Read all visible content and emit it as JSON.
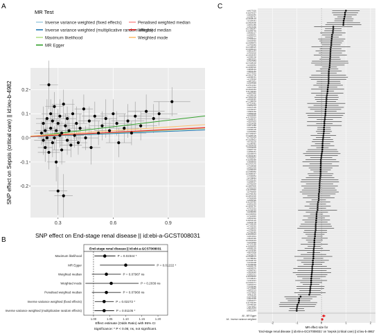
{
  "panels": {
    "a": {
      "letter": "A"
    },
    "b": {
      "letter": "B"
    },
    "c": {
      "letter": "C"
    }
  },
  "chart_data": [
    {
      "panel": "A",
      "type": "scatter",
      "xlabel": "SNP effect on End-stage renal disease || id:ebi-a-GCST008031",
      "ylabel": "SNP effect on Sepsis (critical care) || id:ieu-b-4982",
      "xlim": [
        0.15,
        1.1
      ],
      "ylim": [
        -0.33,
        0.29
      ],
      "xticks": [
        0.3,
        0.6,
        0.9
      ],
      "yticks": [
        -0.2,
        -0.1,
        0.0,
        0.1,
        0.2
      ],
      "legend": {
        "title": "MR Test",
        "position": "top",
        "entries": [
          {
            "label": "Inverse variance weighted (fixed effects)",
            "color": "#a6cee3"
          },
          {
            "label": "Penalised weighted median",
            "color": "#fb9a99"
          },
          {
            "label": "Inverse variance weighted (multiplicative random effects)",
            "color": "#1f78b4"
          },
          {
            "label": "Weighted median",
            "color": "#e31a1c"
          },
          {
            "label": "Maximum likelihood",
            "color": "#b2df8a"
          },
          {
            "label": "Weighted mode",
            "color": "#fdbf6f"
          },
          {
            "label": "MR Egger",
            "color": "#33a02c"
          }
        ]
      },
      "lines": [
        {
          "label": "Inverse variance weighted (fixed effects)",
          "slope": 0.03,
          "intercept": 0.0,
          "color": "#a6cee3"
        },
        {
          "label": "Inverse variance weighted (multiplicative random effects)",
          "slope": 0.03,
          "intercept": 0.0,
          "color": "#1f78b4"
        },
        {
          "label": "Maximum likelihood",
          "slope": 0.035,
          "intercept": 0.0,
          "color": "#b2df8a"
        },
        {
          "label": "MR Egger",
          "slope": 0.09,
          "intercept": -0.008,
          "color": "#33a02c"
        },
        {
          "label": "Penalised weighted median",
          "slope": 0.04,
          "intercept": 0.0,
          "color": "#fb9a99"
        },
        {
          "label": "Weighted median",
          "slope": 0.038,
          "intercept": 0.0,
          "color": "#e31a1c"
        },
        {
          "label": "Weighted mode",
          "slope": 0.05,
          "intercept": 0.0,
          "color": "#fdbf6f"
        }
      ],
      "points": [
        {
          "x": 0.21,
          "y": 0.02,
          "ex": 0.04,
          "ey": 0.05
        },
        {
          "x": 0.22,
          "y": -0.01,
          "ex": 0.05,
          "ey": 0.06
        },
        {
          "x": 0.22,
          "y": 0.06,
          "ex": 0.04,
          "ey": 0.07
        },
        {
          "x": 0.23,
          "y": 0.03,
          "ex": 0.05,
          "ey": 0.05
        },
        {
          "x": 0.23,
          "y": -0.04,
          "ex": 0.04,
          "ey": 0.06
        },
        {
          "x": 0.24,
          "y": 0.08,
          "ex": 0.06,
          "ey": 0.08
        },
        {
          "x": 0.24,
          "y": 0.0,
          "ex": 0.05,
          "ey": 0.05
        },
        {
          "x": 0.25,
          "y": 0.22,
          "ex": 0.05,
          "ey": 0.1
        },
        {
          "x": 0.25,
          "y": -0.06,
          "ex": 0.06,
          "ey": 0.07
        },
        {
          "x": 0.26,
          "y": 0.1,
          "ex": 0.05,
          "ey": 0.06
        },
        {
          "x": 0.26,
          "y": 0.04,
          "ex": 0.04,
          "ey": 0.05
        },
        {
          "x": 0.27,
          "y": -0.02,
          "ex": 0.06,
          "ey": 0.06
        },
        {
          "x": 0.27,
          "y": 0.07,
          "ex": 0.04,
          "ey": 0.07
        },
        {
          "x": 0.28,
          "y": 0.0,
          "ex": 0.05,
          "ey": 0.05
        },
        {
          "x": 0.28,
          "y": 0.13,
          "ex": 0.05,
          "ey": 0.06
        },
        {
          "x": 0.29,
          "y": -0.1,
          "ex": 0.05,
          "ey": 0.08
        },
        {
          "x": 0.29,
          "y": 0.03,
          "ex": 0.06,
          "ey": 0.05
        },
        {
          "x": 0.3,
          "y": 0.06,
          "ex": 0.04,
          "ey": 0.06
        },
        {
          "x": 0.3,
          "y": -0.22,
          "ex": 0.05,
          "ey": 0.1
        },
        {
          "x": 0.31,
          "y": 0.01,
          "ex": 0.06,
          "ey": 0.05
        },
        {
          "x": 0.31,
          "y": 0.09,
          "ex": 0.05,
          "ey": 0.07
        },
        {
          "x": 0.32,
          "y": -0.05,
          "ex": 0.05,
          "ey": 0.06
        },
        {
          "x": 0.32,
          "y": 0.02,
          "ex": 0.04,
          "ey": 0.05
        },
        {
          "x": 0.33,
          "y": 0.14,
          "ex": 0.06,
          "ey": 0.06
        },
        {
          "x": 0.33,
          "y": -0.24,
          "ex": 0.05,
          "ey": 0.09
        },
        {
          "x": 0.34,
          "y": 0.05,
          "ex": 0.05,
          "ey": 0.05
        },
        {
          "x": 0.35,
          "y": -0.01,
          "ex": 0.06,
          "ey": 0.06
        },
        {
          "x": 0.35,
          "y": 0.08,
          "ex": 0.05,
          "ey": 0.05
        },
        {
          "x": 0.36,
          "y": 0.03,
          "ex": 0.04,
          "ey": 0.06
        },
        {
          "x": 0.37,
          "y": -0.03,
          "ex": 0.06,
          "ey": 0.05
        },
        {
          "x": 0.38,
          "y": 0.1,
          "ex": 0.05,
          "ey": 0.06
        },
        {
          "x": 0.39,
          "y": 0.01,
          "ex": 0.05,
          "ey": 0.05
        },
        {
          "x": 0.4,
          "y": 0.06,
          "ex": 0.06,
          "ey": 0.07
        },
        {
          "x": 0.41,
          "y": -0.02,
          "ex": 0.05,
          "ey": 0.05
        },
        {
          "x": 0.42,
          "y": 0.04,
          "ex": 0.06,
          "ey": 0.06
        },
        {
          "x": 0.44,
          "y": 0.12,
          "ex": 0.05,
          "ey": 0.06
        },
        {
          "x": 0.45,
          "y": 0.0,
          "ex": 0.07,
          "ey": 0.05
        },
        {
          "x": 0.47,
          "y": 0.07,
          "ex": 0.06,
          "ey": 0.06
        },
        {
          "x": 0.48,
          "y": -0.04,
          "ex": 0.05,
          "ey": 0.07
        },
        {
          "x": 0.5,
          "y": 0.09,
          "ex": 0.07,
          "ey": 0.06
        },
        {
          "x": 0.52,
          "y": 0.02,
          "ex": 0.06,
          "ey": 0.05
        },
        {
          "x": 0.54,
          "y": 0.05,
          "ex": 0.07,
          "ey": 0.06
        },
        {
          "x": 0.56,
          "y": 0.08,
          "ex": 0.06,
          "ey": 0.08
        },
        {
          "x": 0.58,
          "y": 0.03,
          "ex": 0.08,
          "ey": 0.05
        },
        {
          "x": 0.6,
          "y": 0.1,
          "ex": 0.07,
          "ey": 0.06
        },
        {
          "x": 0.62,
          "y": 0.06,
          "ex": 0.08,
          "ey": 0.05
        },
        {
          "x": 0.63,
          "y": -0.02,
          "ex": 0.07,
          "ey": 0.06
        },
        {
          "x": 0.66,
          "y": 0.04,
          "ex": 0.08,
          "ey": 0.06
        },
        {
          "x": 0.68,
          "y": 0.07,
          "ex": 0.09,
          "ey": 0.07
        },
        {
          "x": 0.7,
          "y": 0.02,
          "ex": 0.08,
          "ey": 0.05
        },
        {
          "x": 0.72,
          "y": 0.09,
          "ex": 0.09,
          "ey": 0.06
        },
        {
          "x": 0.75,
          "y": 0.05,
          "ex": 0.09,
          "ey": 0.06
        },
        {
          "x": 0.78,
          "y": 0.11,
          "ex": 0.1,
          "ey": 0.07
        },
        {
          "x": 0.82,
          "y": 0.08,
          "ex": 0.09,
          "ey": 0.06
        },
        {
          "x": 0.85,
          "y": 0.1,
          "ex": 0.1,
          "ey": 0.05
        },
        {
          "x": 0.92,
          "y": 0.15,
          "ex": 0.1,
          "ey": 0.06
        }
      ]
    },
    {
      "panel": "B",
      "type": "forest",
      "title": "End-stage renal disease || id:ebi-a-GCST008031",
      "xlabel": "Effect estimate (Odds Ratio) with 95% CI",
      "caption": "Significance: * P < 0.05; ns, not significant.",
      "xlim": [
        0.97,
        1.23
      ],
      "xticks": [
        1.0,
        1.05,
        1.1,
        1.15,
        1.2
      ],
      "xtick_labels": [
        "1.00",
        "1.05",
        "1.10",
        "1.15",
        "1.20"
      ],
      "reference": 1.0,
      "rows": [
        {
          "method": "Maximum likelihood",
          "or": 1.035,
          "lo": 1.003,
          "hi": 1.068,
          "p": "P = 0.02344",
          "sig": "*"
        },
        {
          "method": "MR Egger",
          "or": 1.1,
          "lo": 1.02,
          "hi": 1.19,
          "p": "P = 0.01222",
          "sig": "*"
        },
        {
          "method": "Weighted median",
          "or": 1.04,
          "lo": 0.995,
          "hi": 1.085,
          "p": "P = 0.07987",
          "sig": "ns"
        },
        {
          "method": "Weighted mode",
          "or": 1.055,
          "lo": 0.975,
          "hi": 1.14,
          "p": "P = 0.2039",
          "sig": "ns"
        },
        {
          "method": "Penalised weighted median",
          "or": 1.04,
          "lo": 0.995,
          "hi": 1.085,
          "p": "P = 0.07960",
          "sig": "ns"
        },
        {
          "method": "Inverse variance weighted (fixed effects)",
          "or": 1.033,
          "lo": 1.004,
          "hi": 1.063,
          "p": "P = 0.02272",
          "sig": "*"
        },
        {
          "method": "Inverse variance weighted (multiplicative random effects)",
          "or": 1.033,
          "lo": 1.003,
          "hi": 1.064,
          "p": "P = 0.01105",
          "sig": "*"
        }
      ]
    },
    {
      "panel": "C",
      "type": "forest",
      "xlabel": "MR effect size for\n'End-stage renal disease || id:ebi-a-GCST008031' on 'Sepsis (critical care) || id:ieu-b-4982'",
      "xlim": [
        -2.6,
        2.2
      ],
      "xticks": [
        -2,
        -1,
        0,
        1,
        2
      ],
      "reference": 0,
      "snps": [
        "rs4077020",
        "rs11576327",
        "rs6692540",
        "rs2290741",
        "rs12028133",
        "rs1126441",
        "rs10918306",
        "rs6661489",
        "rs7547290",
        "rs17390547",
        "rs11889765",
        "rs4666217",
        "rs1800972",
        "rs2302777",
        "rs7593024",
        "rs6432540",
        "rs13395873",
        "rs3754683",
        "rs10188625",
        "rs13406224",
        "rs3821244",
        "rs7601018",
        "rs12618244",
        "rs2282138",
        "rs9819301",
        "rs7627853",
        "rs17228218",
        "rs4402961",
        "rs13086530",
        "rs9838294",
        "rs6804182",
        "rs3774301",
        "rs10013706",
        "rs4698391",
        "rs1129064",
        "rs6812831",
        "rs1347693",
        "rs17011342",
        "rs4627094",
        "rs10026363",
        "rs11746040",
        "rs6887846",
        "rs2195100",
        "rs10866658",
        "rs4958582",
        "rs12188034",
        "rs7714081",
        "rs6881223",
        "rs2227135",
        "rs1045407",
        "rs9381160",
        "rs2859006",
        "rs6459889",
        "rs11752919",
        "rs2858331",
        "rs9267833",
        "rs2524099",
        "rs2071286",
        "rs3130283",
        "rs9266106",
        "rs2281862",
        "rs17153637",
        "rs10265109",
        "rs7791424",
        "rs12539813",
        "rs4730203",
        "rs2280981",
        "rs10954638",
        "rs1533003",
        "rs6987702",
        "rs2896261",
        "rs4236673",
        "rs10503387",
        "rs7825907",
        "rs11995089",
        "rs3808835",
        "rs10757270",
        "rs7028668",
        "rs4961303",
        "rs2282015",
        "rs12380860",
        "rs10986347",
        "rs7096854",
        "rs4749944",
        "rs11011112",
        "rs1858037",
        "rs3781634",
        "rs10887800",
        "rs7081024",
        "rs11187820",
        "rs4752820",
        "rs10766184",
        "rs12801636",
        "rs7932939",
        "rs2955590",
        "rs11220462",
        "rs1801253",
        "rs10846746",
        "rs7970331",
        "rs11058393",
        "rs2280865",
        "rs10160804",
        "rs7324845",
        "rs9564692",
        "rs11842120",
        "rs1923778",
        "rs17109259",
        "rs7142315",
        "rs4128923",
        "rs2239920",
        "rs1256049",
        "rs11625815",
        "rs2013901",
        "rs8026390",
        "rs12904033",
        "rs2470893",
        "rs7170185",
        "rs11856835",
        "rs4985155",
        "rs12929586",
        "rs8047838",
        "rs2230270",
        "rs12598075",
        "rs4788084",
        "rs12948733",
        "rs2240308",
        "rs11658668",
        "rs4969178",
        "rs8069576",
        "rs1860361",
        "rs9954649",
        "rs2852321",
        "rs11663816",
        "rs7248241",
        "rs2113021",
        "rs10402271",
        "rs4802072",
        "rs2239689",
        "rs1129846",
        "rs6015223",
        "rs2273802",
        "rs4811150",
        "rs2073658",
        "rs9976036",
        "rs2832077",
        "rs11703245",
        "rs5755420",
        "rs2073511",
        "rs9607633",
        "rs4821544"
      ],
      "summary": [
        {
          "label": "All - MR Egger",
          "est": 0.09,
          "lo": 0.02,
          "hi": 0.17
        },
        {
          "label": "All - Inverse variance weighted",
          "est": 0.03,
          "lo": 0.004,
          "hi": 0.06
        }
      ]
    }
  ]
}
